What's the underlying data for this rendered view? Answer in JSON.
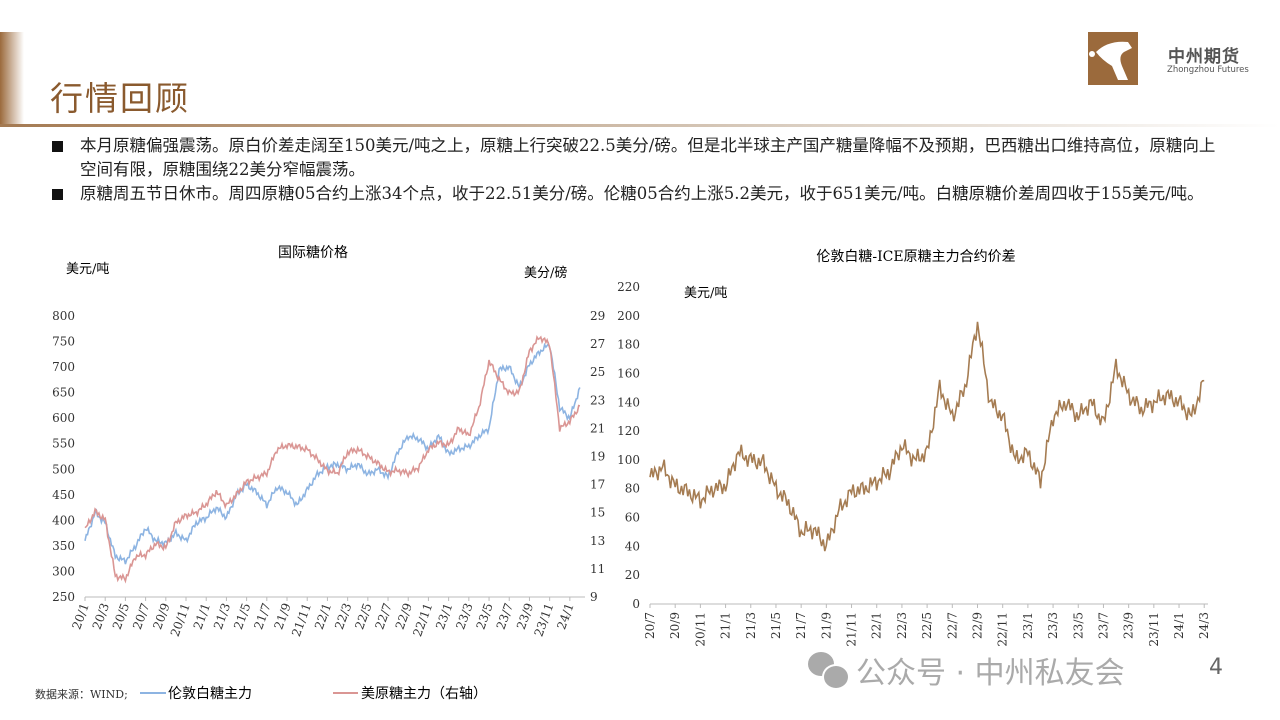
{
  "header": {
    "title": "行情回顾"
  },
  "logo": {
    "name_cn": "中州期货",
    "name_en": "Zhongzhou Futures"
  },
  "bullets": [
    "本月原糖偏强震荡。原白价差走阔至150美元/吨之上，原糖上行突破22.5美分/磅。但是北半球主产国产糖量降幅不及预期，巴西糖出口维持高位，原糖向上空间有限，原糖围绕22美分窄幅震荡。",
    "原糖周五节日休市。周四原糖05合约上涨34个点，收于22.51美分/磅。伦糖05合约上涨5.2美元，收于651美元/吨。白糖原糖价差周四收于155美元/吨。"
  ],
  "source": "数据来源：WIND;",
  "watermark": "公众号 · 中州私友会",
  "page_number": "4",
  "colors": {
    "white_sugar": "#8db4e2",
    "raw_sugar": "#da9694",
    "spread": "#a57c52",
    "brand": "#9b6a3c"
  },
  "chart_data": [
    {
      "type": "line",
      "title": "国际糖价格",
      "ylabel": "美元/吨",
      "y2label": "美分/磅",
      "ylim": [
        250,
        800
      ],
      "y2lim": [
        9,
        29
      ],
      "yticks": [
        250,
        300,
        350,
        400,
        450,
        500,
        550,
        600,
        650,
        700,
        750,
        800
      ],
      "y2ticks": [
        9,
        11,
        13,
        15,
        17,
        19,
        21,
        23,
        25,
        27,
        29
      ],
      "xticks": [
        "20/1",
        "20/3",
        "20/5",
        "20/7",
        "20/9",
        "20/11",
        "21/1",
        "21/3",
        "21/5",
        "21/7",
        "21/9",
        "21/11",
        "22/1",
        "22/3",
        "22/5",
        "22/7",
        "22/9",
        "22/11",
        "23/1",
        "23/3",
        "23/5",
        "23/7",
        "23/9",
        "23/11",
        "24/1"
      ],
      "x_months": [
        "20/1",
        "20/2",
        "20/3",
        "20/4",
        "20/5",
        "20/6",
        "20/7",
        "20/8",
        "20/9",
        "20/10",
        "20/11",
        "20/12",
        "21/1",
        "21/2",
        "21/3",
        "21/4",
        "21/5",
        "21/6",
        "21/7",
        "21/8",
        "21/9",
        "21/10",
        "21/11",
        "21/12",
        "22/1",
        "22/2",
        "22/3",
        "22/4",
        "22/5",
        "22/6",
        "22/7",
        "22/8",
        "22/9",
        "22/10",
        "22/11",
        "22/12",
        "23/1",
        "23/2",
        "23/3",
        "23/4",
        "23/5",
        "23/6",
        "23/7",
        "23/8",
        "23/9",
        "23/10",
        "23/11",
        "23/12",
        "24/1",
        "24/2"
      ],
      "series": [
        {
          "name": "伦敦白糖主力",
          "axis": "left",
          "values": [
            360,
            415,
            395,
            330,
            320,
            350,
            385,
            360,
            355,
            375,
            360,
            395,
            405,
            425,
            405,
            450,
            470,
            455,
            430,
            465,
            455,
            430,
            460,
            490,
            505,
            510,
            500,
            510,
            490,
            500,
            485,
            535,
            565,
            560,
            540,
            565,
            530,
            540,
            545,
            565,
            580,
            695,
            700,
            660,
            705,
            730,
            745,
            620,
            600,
            660
          ]
        },
        {
          "name": "美原糖主力（右轴）",
          "axis": "right",
          "values": [
            13.8,
            15.1,
            14.5,
            10.5,
            10.3,
            11.9,
            12.0,
            12.8,
            12.5,
            14.3,
            14.8,
            15.0,
            15.6,
            16.5,
            15.5,
            16.3,
            17.2,
            17.5,
            17.8,
            19.5,
            19.8,
            19.7,
            19.5,
            18.8,
            18.0,
            17.8,
            19.3,
            19.5,
            19.0,
            18.5,
            17.9,
            18.0,
            17.8,
            18.2,
            19.5,
            20.0,
            19.8,
            21.0,
            20.5,
            22.5,
            25.8,
            24.5,
            23.5,
            23.6,
            26.5,
            27.5,
            27.0,
            21.0,
            21.5,
            22.6
          ]
        }
      ]
    },
    {
      "type": "line",
      "title": "伦敦白糖-ICE原糖主力合约价差",
      "ylabel": "美元/吨",
      "ylim": [
        0,
        220
      ],
      "yticks": [
        0,
        20,
        40,
        60,
        80,
        100,
        120,
        140,
        160,
        180,
        200,
        220
      ],
      "xticks": [
        "20/7",
        "20/9",
        "20/11",
        "21/1",
        "21/3",
        "21/5",
        "21/7",
        "21/9",
        "21/11",
        "22/1",
        "22/3",
        "22/5",
        "22/7",
        "22/9",
        "22/11",
        "23/1",
        "23/3",
        "23/5",
        "23/7",
        "23/9",
        "23/11",
        "24/1",
        "24/3"
      ],
      "x_months": [
        "20/7",
        "20/8",
        "20/9",
        "20/10",
        "20/11",
        "20/12",
        "21/1",
        "21/2",
        "21/3",
        "21/4",
        "21/5",
        "21/6",
        "21/7",
        "21/8",
        "21/9",
        "21/10",
        "21/11",
        "21/12",
        "22/1",
        "22/2",
        "22/3",
        "22/4",
        "22/5",
        "22/6",
        "22/7",
        "22/8",
        "22/9",
        "22/10",
        "22/11",
        "22/12",
        "23/1",
        "23/2",
        "23/3",
        "23/4",
        "23/5",
        "23/6",
        "23/7",
        "23/8",
        "23/9",
        "23/10",
        "23/11",
        "23/12",
        "24/1",
        "24/2",
        "24/3"
      ],
      "series": [
        {
          "name": "价差",
          "values": [
            88,
            95,
            82,
            78,
            72,
            80,
            82,
            105,
            100,
            98,
            80,
            70,
            50,
            52,
            40,
            65,
            78,
            80,
            85,
            92,
            110,
            100,
            105,
            150,
            130,
            150,
            195,
            140,
            130,
            100,
            105,
            85,
            130,
            140,
            130,
            140,
            125,
            165,
            145,
            135,
            140,
            145,
            140,
            130,
            155
          ]
        }
      ]
    }
  ]
}
